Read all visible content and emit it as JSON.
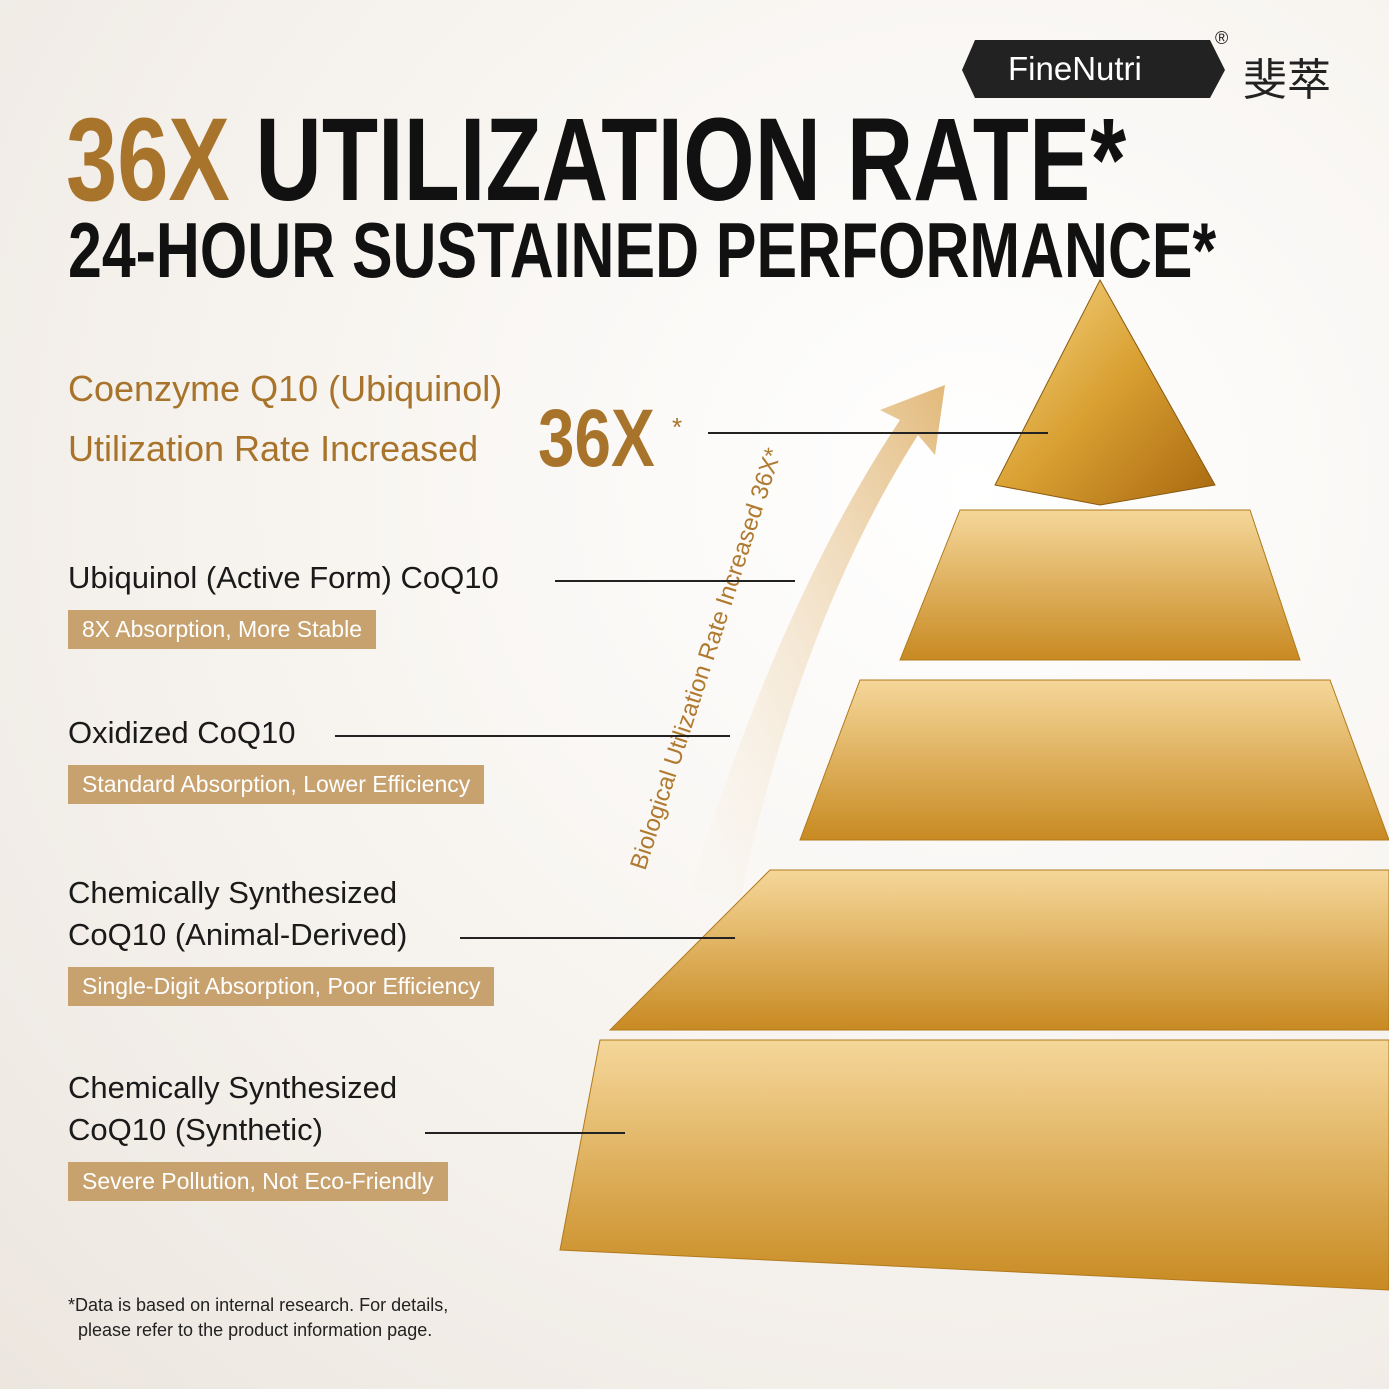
{
  "brand": {
    "name": "FineNutri",
    "mark": "®",
    "chinese": "斐萃"
  },
  "headline": {
    "highlight": "36X",
    "line1": "UTILIZATION RATE*",
    "line2": "24-HOUR SUSTAINED PERFORMANCE*"
  },
  "top_tier": {
    "line1": "Coenzyme Q10 (Ubiquinol)",
    "line2": "Utilization Rate Increased",
    "value": "36X",
    "note": "*"
  },
  "arrow_label": "Biological Utilization Rate Increased 36X*",
  "tiers": [
    {
      "title": [
        "Ubiquinol (Active Form) CoQ10"
      ],
      "badge": "8X Absorption, More Stable"
    },
    {
      "title": [
        "Oxidized CoQ10"
      ],
      "badge": "Standard Absorption, Lower Efficiency"
    },
    {
      "title": [
        "Chemically Synthesized",
        "CoQ10 (Animal-Derived)"
      ],
      "badge": "Single-Digit Absorption, Poor Efficiency"
    },
    {
      "title": [
        "Chemically Synthesized",
        "CoQ10 (Synthetic)"
      ],
      "badge": "Severe Pollution, Not Eco-Friendly"
    }
  ],
  "footnote": [
    "*Data is based on internal research. For details,",
    "please refer to the product information page."
  ]
}
